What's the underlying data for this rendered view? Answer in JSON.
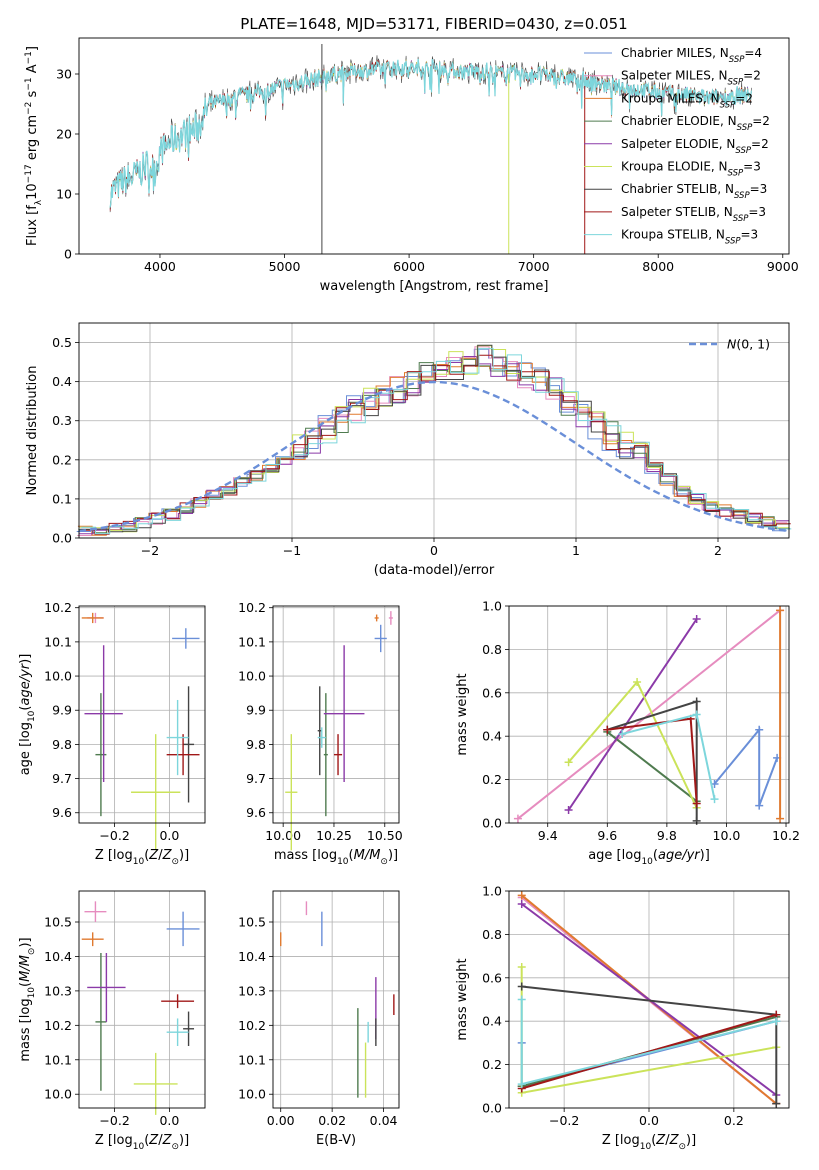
{
  "figure": {
    "title": "PLATE=1648, MJD=53171, FIBERID=0430, z=0.051"
  },
  "colors": {
    "Chabrier MILES": "#6a8fd8",
    "Salpeter MILES": "#e68cbf",
    "Kroupa MILES": "#e07a2f",
    "Chabrier ELODIE": "#4f7b4f",
    "Salpeter ELODIE": "#8b3aa8",
    "Kroupa ELODIE": "#cbe35a",
    "Chabrier STELIB": "#444444",
    "Salpeter STELIB": "#a01818",
    "Kroupa STELIB": "#7dd6dc"
  },
  "chart_data": [
    {
      "id": "spectrum",
      "type": "line",
      "xlabel": "wavelength [Angstrom, rest frame]",
      "ylabel": "Flux [f_λ10^-17 erg cm^-2 s^-1 A^-1]",
      "xlim": [
        3350,
        9050
      ],
      "ylim": [
        0,
        36
      ],
      "xticks": [
        4000,
        5000,
        6000,
        7000,
        8000,
        9000
      ],
      "yticks": [
        0,
        10,
        20,
        30
      ],
      "grid": false,
      "legend_position": "top-right",
      "legend": [
        {
          "model": "Chabrier MILES",
          "label": "Chabrier MILES, N",
          "sub": "SSP",
          "n": "=4"
        },
        {
          "model": "Salpeter MILES",
          "label": "Salpeter MILES, N",
          "sub": "SSP",
          "n": "=2"
        },
        {
          "model": "Kroupa MILES",
          "label": "Kroupa MILES, N",
          "sub": "SSP",
          "n": "=2"
        },
        {
          "model": "Chabrier ELODIE",
          "label": "Chabrier ELODIE, N",
          "sub": "SSP",
          "n": "=2"
        },
        {
          "model": "Salpeter ELODIE",
          "label": "Salpeter ELODIE, N",
          "sub": "SSP",
          "n": "=2"
        },
        {
          "model": "Kroupa ELODIE",
          "label": "Kroupa ELODIE, N",
          "sub": "SSP",
          "n": "=3"
        },
        {
          "model": "Chabrier STELIB",
          "label": "Chabrier STELIB, N",
          "sub": "SSP",
          "n": "=3"
        },
        {
          "model": "Salpeter STELIB",
          "label": "Salpeter STELIB, N",
          "sub": "SSP",
          "n": "=3"
        },
        {
          "model": "Kroupa STELIB",
          "label": "Kroupa STELIB, N",
          "sub": "SSP",
          "n": "=3"
        }
      ],
      "continuum_nodes": [
        [
          3600,
          10
        ],
        [
          3700,
          12
        ],
        [
          3800,
          13
        ],
        [
          3900,
          15
        ],
        [
          3960,
          14
        ],
        [
          4000,
          17
        ],
        [
          4100,
          19
        ],
        [
          4300,
          21
        ],
        [
          4400,
          25
        ],
        [
          4600,
          26
        ],
        [
          4800,
          27
        ],
        [
          5000,
          28
        ],
        [
          5200,
          29
        ],
        [
          5400,
          30
        ],
        [
          5600,
          30.5
        ],
        [
          5800,
          31
        ],
        [
          6000,
          31
        ],
        [
          6200,
          31
        ],
        [
          6400,
          30.5
        ],
        [
          6600,
          30.5
        ],
        [
          6800,
          30
        ],
        [
          7000,
          30
        ],
        [
          7200,
          29.5
        ],
        [
          7400,
          29
        ],
        [
          7600,
          28
        ],
        [
          7800,
          27.5
        ],
        [
          8000,
          27
        ],
        [
          8200,
          26.5
        ],
        [
          8400,
          26
        ],
        [
          8700,
          26.5
        ]
      ],
      "spikes": [
        {
          "x": 5300,
          "y0": 0,
          "y1": 35,
          "model": "Chabrier STELIB"
        },
        {
          "x": 6800,
          "y0": 0,
          "y1": 30,
          "model": "Kroupa ELODIE"
        },
        {
          "x": 7410,
          "y0": 0,
          "y1": 28,
          "model": "Salpeter STELIB"
        }
      ]
    },
    {
      "id": "residuals",
      "type": "line",
      "xlabel": "(data-model)/error",
      "ylabel": "Normed distribution",
      "xlim": [
        -2.5,
        2.5
      ],
      "ylim": [
        0,
        0.55
      ],
      "xticks": [
        -2,
        -1,
        0,
        1,
        2
      ],
      "yticks": [
        0.0,
        0.1,
        0.2,
        0.3,
        0.4,
        0.5
      ],
      "grid": true,
      "legend_position": "top-right",
      "legend_label": "N(0,1)",
      "bin_width": 0.1,
      "bin_start": -2.5,
      "hist_base": [
        0.015,
        0.02,
        0.025,
        0.03,
        0.04,
        0.05,
        0.06,
        0.075,
        0.09,
        0.11,
        0.12,
        0.14,
        0.16,
        0.18,
        0.2,
        0.23,
        0.25,
        0.28,
        0.3,
        0.33,
        0.35,
        0.36,
        0.38,
        0.4,
        0.42,
        0.43,
        0.44,
        0.45,
        0.46,
        0.45,
        0.44,
        0.42,
        0.4,
        0.38,
        0.35,
        0.32,
        0.29,
        0.26,
        0.24,
        0.21,
        0.18,
        0.15,
        0.12,
        0.1,
        0.08,
        0.07,
        0.06,
        0.05,
        0.04,
        0.03
      ]
    },
    {
      "id": "age-vs-Z",
      "type": "scatter",
      "xlabel": "Z [log10(Z/Z⊙)]",
      "ylabel": "age [log10(age/yr)]",
      "xlim": [
        -0.33,
        0.13
      ],
      "ylim": [
        9.57,
        10.205
      ],
      "xticks": [
        -0.2,
        0.0
      ],
      "yticks": [
        9.6,
        9.7,
        9.8,
        9.9,
        10.0,
        10.1,
        10.2
      ],
      "grid": true,
      "points": [
        {
          "model": "Chabrier MILES",
          "x": 0.06,
          "y": 10.11,
          "xerr": 0.05,
          "yerr": 0.03
        },
        {
          "model": "Salpeter MILES",
          "x": -0.27,
          "y": 10.17,
          "xerr": 0.03,
          "yerr": 0.015
        },
        {
          "model": "Kroupa MILES",
          "x": -0.28,
          "y": 10.17,
          "xerr": 0.04,
          "yerr": 0.015
        },
        {
          "model": "Chabrier ELODIE",
          "x": -0.25,
          "y": 9.77,
          "xerr": 0.02,
          "yerr": 0.18
        },
        {
          "model": "Salpeter ELODIE",
          "x": -0.24,
          "y": 9.89,
          "xerr": 0.07,
          "yerr": 0.2
        },
        {
          "model": "Kroupa ELODIE",
          "x": -0.05,
          "y": 9.66,
          "xerr": 0.09,
          "yerr": 0.17
        },
        {
          "model": "Chabrier STELIB",
          "x": 0.07,
          "y": 9.8,
          "xerr": 0.02,
          "yerr": 0.17
        },
        {
          "model": "Salpeter STELIB",
          "x": 0.05,
          "y": 9.77,
          "xerr": 0.06,
          "yerr": 0.06
        },
        {
          "model": "Kroupa STELIB",
          "x": 0.03,
          "y": 9.82,
          "xerr": 0.04,
          "yerr": 0.11
        }
      ]
    },
    {
      "id": "age-vs-mass",
      "type": "scatter",
      "xlabel": "mass [log10(M/M⊙)]",
      "ylabel": "",
      "xlim": [
        9.95,
        10.57
      ],
      "ylim": [
        9.57,
        10.205
      ],
      "xticks": [
        10.0,
        10.25,
        10.5
      ],
      "yticks": [
        9.6,
        9.7,
        9.8,
        9.9,
        10.0,
        10.1,
        10.2
      ],
      "grid": true,
      "points": [
        {
          "model": "Chabrier MILES",
          "x": 10.48,
          "y": 10.11,
          "xerr": 0.03,
          "yerr": 0.04
        },
        {
          "model": "Salpeter MILES",
          "x": 10.53,
          "y": 10.17,
          "xerr": 0.01,
          "yerr": 0.02
        },
        {
          "model": "Kroupa MILES",
          "x": 10.46,
          "y": 10.17,
          "xerr": 0.01,
          "yerr": 0.01
        },
        {
          "model": "Chabrier ELODIE",
          "x": 10.21,
          "y": 9.77,
          "xerr": 0.01,
          "yerr": 0.18
        },
        {
          "model": "Salpeter ELODIE",
          "x": 10.3,
          "y": 9.89,
          "xerr": 0.1,
          "yerr": 0.2
        },
        {
          "model": "Kroupa ELODIE",
          "x": 10.04,
          "y": 9.66,
          "xerr": 0.03,
          "yerr": 0.17
        },
        {
          "model": "Chabrier STELIB",
          "x": 10.18,
          "y": 9.84,
          "xerr": 0.01,
          "yerr": 0.13
        },
        {
          "model": "Salpeter STELIB",
          "x": 10.27,
          "y": 9.77,
          "xerr": 0.02,
          "yerr": 0.06
        },
        {
          "model": "Kroupa STELIB",
          "x": 10.19,
          "y": 9.82,
          "xerr": 0.02,
          "yerr": 0.03
        }
      ]
    },
    {
      "id": "mass-weight-vs-age",
      "type": "line",
      "xlabel": "age [log10(age/yr)]",
      "ylabel": "mass weight",
      "xlim": [
        9.27,
        10.21
      ],
      "ylim": [
        0,
        1
      ],
      "xticks": [
        9.4,
        9.6,
        9.8,
        10.0,
        10.2
      ],
      "yticks": [
        0.0,
        0.2,
        0.4,
        0.6,
        0.8,
        1.0
      ],
      "grid": true,
      "series": [
        {
          "model": "Chabrier MILES",
          "x": [
            9.96,
            10.11,
            10.11,
            10.17
          ],
          "y": [
            0.18,
            0.43,
            0.08,
            0.3
          ]
        },
        {
          "model": "Salpeter MILES",
          "x": [
            9.3,
            10.18
          ],
          "y": [
            0.02,
            0.98
          ]
        },
        {
          "model": "Kroupa MILES",
          "x": [
            10.18,
            10.18
          ],
          "y": [
            0.98,
            0.02
          ]
        },
        {
          "model": "Chabrier ELODIE",
          "x": [
            9.6,
            9.9
          ],
          "y": [
            0.42,
            0.1
          ]
        },
        {
          "model": "Salpeter ELODIE",
          "x": [
            9.47,
            9.9
          ],
          "y": [
            0.06,
            0.94
          ]
        },
        {
          "model": "Kroupa ELODIE",
          "x": [
            9.47,
            9.7,
            9.9
          ],
          "y": [
            0.28,
            0.65,
            0.07
          ]
        },
        {
          "model": "Chabrier STELIB",
          "x": [
            9.6,
            9.9,
            9.9
          ],
          "y": [
            0.43,
            0.56,
            0.01
          ]
        },
        {
          "model": "Salpeter STELIB",
          "x": [
            9.6,
            9.88,
            9.9
          ],
          "y": [
            0.43,
            0.48,
            0.09
          ]
        },
        {
          "model": "Kroupa STELIB",
          "x": [
            9.65,
            9.9,
            9.96
          ],
          "y": [
            0.41,
            0.5,
            0.11
          ]
        }
      ]
    },
    {
      "id": "mass-vs-Z",
      "type": "scatter",
      "xlabel": "Z [log10(Z/Z⊙)]",
      "ylabel": "mass [log10(M/M⊙)]",
      "xlim": [
        -0.33,
        0.13
      ],
      "ylim": [
        9.96,
        10.59
      ],
      "xticks": [
        -0.2,
        0.0
      ],
      "yticks": [
        10.0,
        10.1,
        10.2,
        10.3,
        10.4,
        10.5
      ],
      "grid": true,
      "points": [
        {
          "model": "Chabrier MILES",
          "x": 0.05,
          "y": 10.48,
          "xerr": 0.06,
          "yerr": 0.05
        },
        {
          "model": "Salpeter MILES",
          "x": -0.27,
          "y": 10.53,
          "xerr": 0.04,
          "yerr": 0.03
        },
        {
          "model": "Kroupa MILES",
          "x": -0.28,
          "y": 10.45,
          "xerr": 0.04,
          "yerr": 0.02
        },
        {
          "model": "Chabrier ELODIE",
          "x": -0.25,
          "y": 10.21,
          "xerr": 0.02,
          "yerr": 0.2
        },
        {
          "model": "Salpeter ELODIE",
          "x": -0.23,
          "y": 10.31,
          "xerr": 0.07,
          "yerr": 0.1
        },
        {
          "model": "Kroupa ELODIE",
          "x": -0.05,
          "y": 10.03,
          "xerr": 0.08,
          "yerr": 0.09
        },
        {
          "model": "Chabrier STELIB",
          "x": 0.07,
          "y": 10.19,
          "xerr": 0.02,
          "yerr": 0.05
        },
        {
          "model": "Salpeter STELIB",
          "x": 0.03,
          "y": 10.27,
          "xerr": 0.06,
          "yerr": 0.02
        },
        {
          "model": "Kroupa STELIB",
          "x": 0.03,
          "y": 10.18,
          "xerr": 0.04,
          "yerr": 0.04
        }
      ]
    },
    {
      "id": "mass-vs-EBV",
      "type": "scatter",
      "xlabel": "E(B-V)",
      "ylabel": "",
      "xlim": [
        -0.003,
        0.046
      ],
      "ylim": [
        9.96,
        10.59
      ],
      "xticks": [
        0.0,
        0.02,
        0.04
      ],
      "yticks": [
        10.0,
        10.1,
        10.2,
        10.3,
        10.4,
        10.5
      ],
      "grid": true,
      "points": [
        {
          "model": "Chabrier MILES",
          "x": 0.016,
          "y": 10.48,
          "xerr": 0,
          "yerr": 0.05
        },
        {
          "model": "Salpeter MILES",
          "x": 0.01,
          "y": 10.54,
          "xerr": 0,
          "yerr": 0.02
        },
        {
          "model": "Kroupa MILES",
          "x": 0.0,
          "y": 10.45,
          "xerr": 0,
          "yerr": 0.02
        },
        {
          "model": "Chabrier ELODIE",
          "x": 0.03,
          "y": 10.12,
          "xerr": 0,
          "yerr": 0.13
        },
        {
          "model": "Salpeter ELODIE",
          "x": 0.037,
          "y": 10.25,
          "xerr": 0,
          "yerr": 0.09
        },
        {
          "model": "Kroupa ELODIE",
          "x": 0.033,
          "y": 10.07,
          "xerr": 0,
          "yerr": 0.08
        },
        {
          "model": "Chabrier STELIB",
          "x": 0.037,
          "y": 10.18,
          "xerr": 0,
          "yerr": 0.04
        },
        {
          "model": "Salpeter STELIB",
          "x": 0.044,
          "y": 10.26,
          "xerr": 0,
          "yerr": 0.03
        },
        {
          "model": "Kroupa STELIB",
          "x": 0.034,
          "y": 10.18,
          "xerr": 0,
          "yerr": 0.03
        }
      ]
    },
    {
      "id": "mass-weight-vs-Z",
      "type": "line",
      "xlabel": "Z [log10(Z/Z⊙)]",
      "ylabel": "mass weight",
      "xlim": [
        -0.33,
        0.33
      ],
      "ylim": [
        0,
        1
      ],
      "xticks": [
        -0.2,
        0.0,
        0.2
      ],
      "yticks": [
        0.0,
        0.2,
        0.4,
        0.6,
        0.8,
        1.0
      ],
      "grid": true,
      "series": [
        {
          "model": "Chabrier MILES",
          "x": [
            -0.3,
            -0.3,
            0.3
          ],
          "y": [
            0.3,
            0.1,
            0.4
          ]
        },
        {
          "model": "Salpeter MILES",
          "x": [
            -0.3,
            0.3
          ],
          "y": [
            0.97,
            0.02
          ]
        },
        {
          "model": "Kroupa MILES",
          "x": [
            -0.3,
            0.3
          ],
          "y": [
            0.98,
            0.02
          ]
        },
        {
          "model": "Chabrier ELODIE",
          "x": [
            -0.3,
            0.3
          ],
          "y": [
            0.1,
            0.42
          ]
        },
        {
          "model": "Salpeter ELODIE",
          "x": [
            -0.3,
            0.3
          ],
          "y": [
            0.94,
            0.06
          ]
        },
        {
          "model": "Kroupa ELODIE",
          "x": [
            -0.3,
            -0.3,
            0.3
          ],
          "y": [
            0.65,
            0.07,
            0.28
          ]
        },
        {
          "model": "Chabrier STELIB",
          "x": [
            -0.3,
            0.3,
            0.3
          ],
          "y": [
            0.56,
            0.43,
            0.02
          ]
        },
        {
          "model": "Salpeter STELIB",
          "x": [
            -0.3,
            0.3
          ],
          "y": [
            0.09,
            0.43
          ]
        },
        {
          "model": "Kroupa STELIB",
          "x": [
            -0.3,
            -0.3,
            0.3
          ],
          "y": [
            0.5,
            0.11,
            0.4
          ]
        }
      ]
    }
  ]
}
